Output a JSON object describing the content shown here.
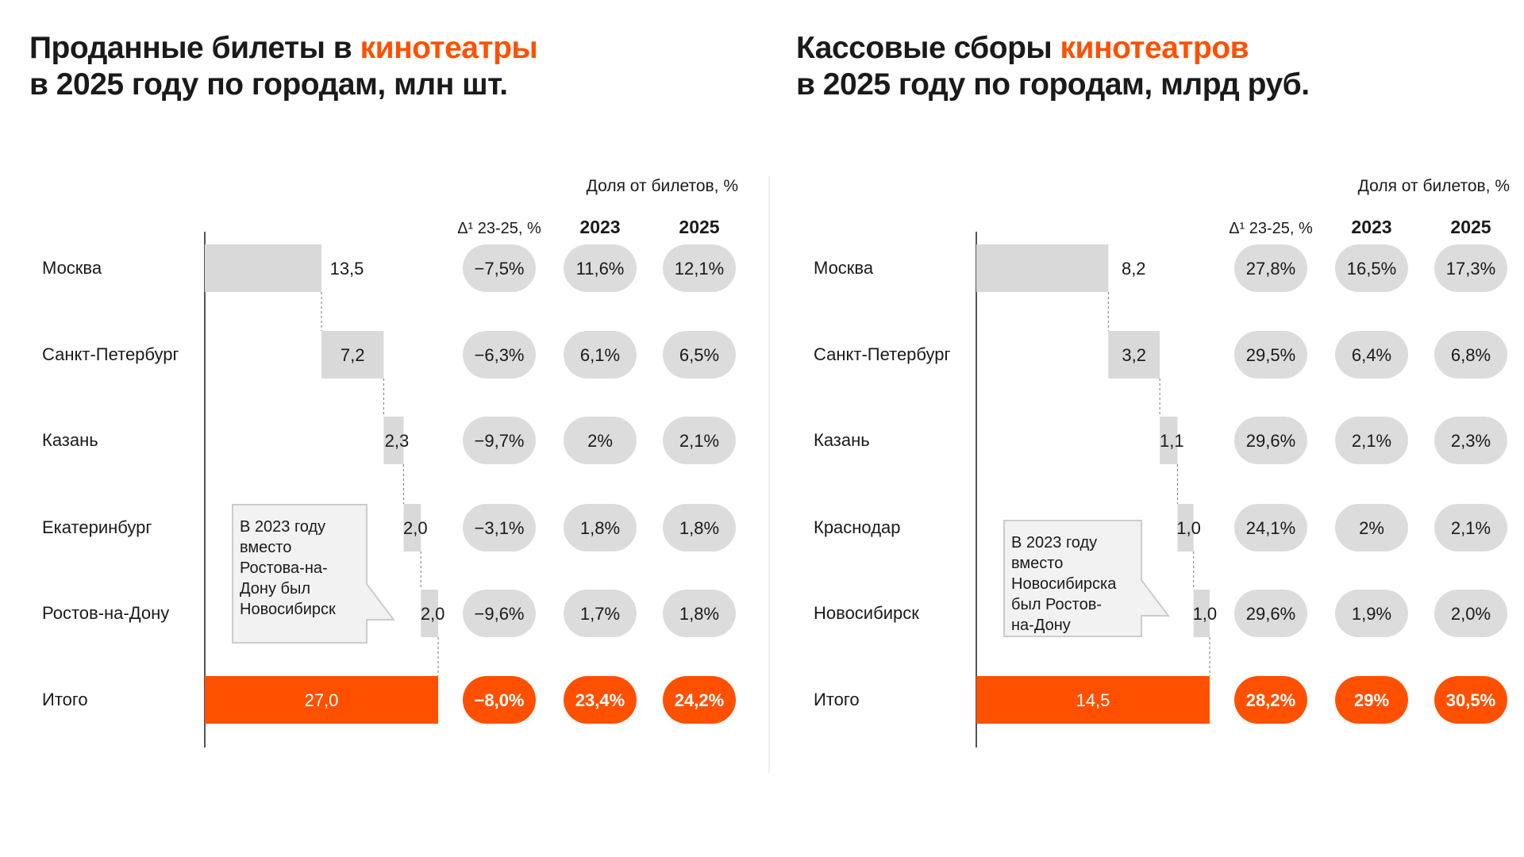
{
  "colors": {
    "accent": "#ff5000",
    "bar": "#d9d9d9",
    "pill": "#dcdcdc",
    "text": "#1a1a1a"
  },
  "chart_data": [
    {
      "type": "bar",
      "subtype": "waterfall",
      "title_part1": "Проданные билеты в ",
      "title_accent": "кинотеатры",
      "title_line2": "в 2025 году по городам, млн шт.",
      "share_header": "Доля от билетов, %",
      "col_headers": [
        "Δ¹ 23-25, %",
        "2023",
        "2025"
      ],
      "categories": [
        "Москва",
        "Санкт-Петербург",
        "Казань",
        "Екатеринбург",
        "Ростов-на-Дону"
      ],
      "values": [
        13.5,
        7.2,
        2.3,
        2.0,
        2.0
      ],
      "value_labels": [
        "13,5",
        "7,2",
        "2,3",
        "2,0",
        "2,0"
      ],
      "delta": [
        "−7,5%",
        "−6,3%",
        "−9,7%",
        "−3,1%",
        "−9,6%"
      ],
      "share_2023": [
        "11,6%",
        "6,1%",
        "2%",
        "1,8%",
        "1,7%"
      ],
      "share_2025": [
        "12,1%",
        "6,5%",
        "2,1%",
        "1,8%",
        "1,8%"
      ],
      "total": {
        "label": "Итого",
        "value": 27.0,
        "value_label": "27,0",
        "delta": "−8,0%",
        "share_2023": "23,4%",
        "share_2025": "24,2%"
      },
      "callout": [
        "В 2023 году",
        "вместо",
        "Ростова-на-",
        "Дону был",
        "Новосибирск"
      ]
    },
    {
      "type": "bar",
      "subtype": "waterfall",
      "title_part1": "Кассовые сборы ",
      "title_accent": "кинотеатров",
      "title_line2": "в 2025 году по городам, млрд руб.",
      "share_header": "Доля от билетов, %",
      "col_headers": [
        "Δ¹ 23-25, %",
        "2023",
        "2025"
      ],
      "categories": [
        "Москва",
        "Санкт-Петербург",
        "Казань",
        "Краснодар",
        "Новосибирск"
      ],
      "values": [
        8.2,
        3.2,
        1.1,
        1.0,
        1.0
      ],
      "value_labels": [
        "8,2",
        "3,2",
        "1,1",
        "1,0",
        "1,0"
      ],
      "delta": [
        "27,8%",
        "29,5%",
        "29,6%",
        "24,1%",
        "29,6%"
      ],
      "share_2023": [
        "16,5%",
        "6,4%",
        "2,1%",
        "2%",
        "1,9%"
      ],
      "share_2025": [
        "17,3%",
        "6,8%",
        "2,3%",
        "2,1%",
        "2,0%"
      ],
      "total": {
        "label": "Итого",
        "value": 14.5,
        "value_label": "14,5",
        "delta": "28,2%",
        "share_2023": "29%",
        "share_2025": "30,5%"
      },
      "callout": [
        "В 2023 году",
        "вместо",
        "Новосибирска",
        "был Ростов-",
        "на-Дону"
      ]
    }
  ]
}
